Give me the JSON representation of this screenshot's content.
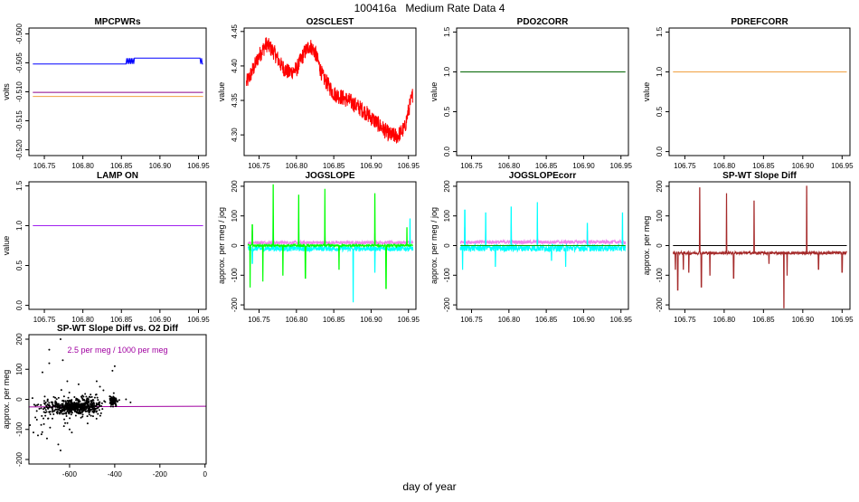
{
  "title": "100416a   Medium Rate Data 4",
  "footer_xlabel": "day of year",
  "chart_data": [
    {
      "id": "mpcpwrs",
      "type": "line",
      "title": "MPCPWRs",
      "ylabel": "volts",
      "xlim": [
        106.73,
        106.96
      ],
      "ylim": [
        -0.521,
        -0.499
      ],
      "xticks": [
        "106.75",
        "106.80",
        "106.85",
        "106.90",
        "106.95"
      ],
      "yticks": [
        "-0.500",
        "-0.505",
        "-0.510",
        "-0.515",
        "-0.520"
      ],
      "series": [
        {
          "color": "#0000ff",
          "x": [
            106.735,
            106.856,
            106.857,
            106.858,
            106.859,
            106.86,
            106.861,
            106.862,
            106.863,
            106.864,
            106.865,
            106.866,
            106.867,
            106.952,
            106.953,
            106.954,
            106.955,
            106.956
          ],
          "y": [
            -0.5052,
            -0.5052,
            -0.5042,
            -0.5052,
            -0.5042,
            -0.5052,
            -0.5042,
            -0.5052,
            -0.5042,
            -0.5052,
            -0.5042,
            -0.5052,
            -0.5042,
            -0.5042,
            -0.5052,
            -0.5042,
            -0.5052,
            -0.5052
          ]
        },
        {
          "color": "#8b008b",
          "x": [
            106.735,
            106.956
          ],
          "y": [
            -0.5101,
            -0.5101
          ]
        },
        {
          "color": "#f0a040",
          "x": [
            106.735,
            106.956
          ],
          "y": [
            -0.5108,
            -0.5108
          ]
        }
      ]
    },
    {
      "id": "o2sclest",
      "type": "line",
      "title": "O2SCLEST",
      "ylabel": "value",
      "xlim": [
        106.73,
        106.96
      ],
      "ylim": [
        4.27,
        4.455
      ],
      "xticks": [
        "106.75",
        "106.80",
        "106.85",
        "106.90",
        "106.95"
      ],
      "yticks": [
        "4.30",
        "4.35",
        "4.40",
        "4.45"
      ],
      "series": [
        {
          "color": "#ff0000",
          "noise": 0.012,
          "x": [
            106.733,
            106.74,
            106.75,
            106.76,
            106.77,
            106.78,
            106.79,
            106.8,
            106.81,
            106.818,
            106.825,
            106.835,
            106.85,
            106.87,
            106.89,
            106.91,
            106.925,
            106.935,
            106.945,
            106.95,
            106.956
          ],
          "y": [
            4.375,
            4.39,
            4.415,
            4.432,
            4.42,
            4.4,
            4.39,
            4.395,
            4.418,
            4.43,
            4.42,
            4.385,
            4.36,
            4.35,
            4.335,
            4.315,
            4.3,
            4.298,
            4.31,
            4.335,
            4.36
          ]
        }
      ]
    },
    {
      "id": "pdo2corr",
      "type": "line",
      "title": "PDO2CORR",
      "ylabel": "value",
      "xlim": [
        106.73,
        106.96
      ],
      "ylim": [
        -0.05,
        1.55
      ],
      "xticks": [
        "106.75",
        "106.80",
        "106.85",
        "106.90",
        "106.95"
      ],
      "yticks": [
        "0.0",
        "0.5",
        "1.0",
        "1.5"
      ],
      "series": [
        {
          "color": "#006400",
          "x": [
            106.735,
            106.956
          ],
          "y": [
            1.0,
            1.0
          ]
        }
      ]
    },
    {
      "id": "pdrefcorr",
      "type": "line",
      "title": "PDREFCORR",
      "ylabel": "value",
      "xlim": [
        106.73,
        106.96
      ],
      "ylim": [
        -0.05,
        1.55
      ],
      "xticks": [
        "106.75",
        "106.80",
        "106.85",
        "106.90",
        "106.95"
      ],
      "yticks": [
        "0.0",
        "0.5",
        "1.0",
        "1.5"
      ],
      "series": [
        {
          "color": "#f0a040",
          "x": [
            106.735,
            106.956
          ],
          "y": [
            1.0,
            1.0
          ]
        }
      ]
    },
    {
      "id": "lampon",
      "type": "line",
      "title": "LAMP ON",
      "ylabel": "value",
      "xlim": [
        106.73,
        106.96
      ],
      "ylim": [
        -0.05,
        1.55
      ],
      "xticks": [
        "106.75",
        "106.80",
        "106.85",
        "106.90",
        "106.95"
      ],
      "yticks": [
        "0.0",
        "0.5",
        "1.0",
        "1.5"
      ],
      "series": [
        {
          "color": "#a020f0",
          "x": [
            106.735,
            106.956
          ],
          "y": [
            1.0,
            1.0
          ]
        }
      ]
    },
    {
      "id": "jogslope",
      "type": "line",
      "title": "JOGSLOPE",
      "ylabel": "approx. per meg / jog",
      "xlim": [
        106.73,
        106.96
      ],
      "ylim": [
        -215,
        215
      ],
      "xticks": [
        "106.75",
        "106.80",
        "106.85",
        "106.90",
        "106.95"
      ],
      "yticks": [
        "-200",
        "-100",
        "0",
        "100",
        "200"
      ],
      "series": [
        {
          "color": "#ee82ee",
          "noise": 6,
          "x": [
            106.735,
            106.956
          ],
          "y": [
            10,
            10
          ],
          "spikes": [
            {
              "x": 106.741,
              "y": 50
            },
            {
              "x": 106.769,
              "y": 60
            },
            {
              "x": 106.803,
              "y": 60
            },
            {
              "x": 106.838,
              "y": 70
            },
            {
              "x": 106.905,
              "y": 40
            }
          ]
        },
        {
          "color": "#00ffff",
          "noise": 9,
          "x": [
            106.735,
            106.956
          ],
          "y": [
            -10,
            -10
          ],
          "spikes": [
            {
              "x": 106.741,
              "y": -60
            },
            {
              "x": 106.769,
              "y": 100
            },
            {
              "x": 106.803,
              "y": 90
            },
            {
              "x": 106.838,
              "y": 50
            },
            {
              "x": 106.876,
              "y": -190
            },
            {
              "x": 106.905,
              "y": -90
            },
            {
              "x": 106.952,
              "y": 90
            }
          ]
        },
        {
          "color": "#00ff00",
          "noise": 4,
          "x": [
            106.735,
            106.956
          ],
          "y": [
            0,
            0
          ],
          "spikes": [
            {
              "x": 106.738,
              "y": -140
            },
            {
              "x": 106.741,
              "y": 70
            },
            {
              "x": 106.755,
              "y": -120
            },
            {
              "x": 106.769,
              "y": 205
            },
            {
              "x": 106.782,
              "y": -100
            },
            {
              "x": 106.803,
              "y": 170
            },
            {
              "x": 106.812,
              "y": -110
            },
            {
              "x": 106.838,
              "y": 190
            },
            {
              "x": 106.857,
              "y": -80
            },
            {
              "x": 106.905,
              "y": 175
            },
            {
              "x": 106.92,
              "y": -145
            },
            {
              "x": 106.948,
              "y": 60
            }
          ]
        }
      ]
    },
    {
      "id": "jogslopecorr",
      "type": "line",
      "title": "JOGSLOPEcorr",
      "ylabel": "approx. per meg / jog",
      "xlim": [
        106.73,
        106.96
      ],
      "ylim": [
        -215,
        215
      ],
      "xticks": [
        "106.75",
        "106.80",
        "106.85",
        "106.90",
        "106.95"
      ],
      "yticks": [
        "-200",
        "-100",
        "0",
        "100",
        "200"
      ],
      "series": [
        {
          "color": "#ee82ee",
          "noise": 6,
          "x": [
            106.735,
            106.956
          ],
          "y": [
            12,
            12
          ],
          "spikes": [
            {
              "x": 106.741,
              "y": 60
            },
            {
              "x": 106.769,
              "y": 50
            },
            {
              "x": 106.803,
              "y": 70
            },
            {
              "x": 106.838,
              "y": 80
            },
            {
              "x": 106.905,
              "y": 50
            }
          ]
        },
        {
          "color": "#00ffff",
          "noise": 12,
          "x": [
            106.735,
            106.956
          ],
          "y": [
            -8,
            -8
          ],
          "spikes": [
            {
              "x": 106.738,
              "y": -80
            },
            {
              "x": 106.741,
              "y": 120
            },
            {
              "x": 106.769,
              "y": 110
            },
            {
              "x": 106.782,
              "y": -70
            },
            {
              "x": 106.803,
              "y": 130
            },
            {
              "x": 106.838,
              "y": 145
            },
            {
              "x": 106.857,
              "y": -50
            },
            {
              "x": 106.876,
              "y": -70
            },
            {
              "x": 106.905,
              "y": 75
            },
            {
              "x": 106.952,
              "y": 110
            }
          ]
        },
        {
          "color": "#00aa00",
          "x": [
            106.735,
            106.956
          ],
          "y": [
            0,
            0
          ]
        }
      ]
    },
    {
      "id": "spwt",
      "type": "line",
      "title": "SP-WT Slope Diff",
      "ylabel": "approx. per meg",
      "xlim": [
        106.73,
        106.96
      ],
      "ylim": [
        -215,
        215
      ],
      "xticks": [
        "106.75",
        "106.80",
        "106.85",
        "106.90",
        "106.95"
      ],
      "yticks": [
        "-200",
        "-100",
        "0",
        "100",
        "200"
      ],
      "series": [
        {
          "color": "#000000",
          "x": [
            106.735,
            106.956
          ],
          "y": [
            0,
            0
          ]
        },
        {
          "color": "#a52a2a",
          "noise": 5,
          "x": [
            106.735,
            106.956
          ],
          "y": [
            -25,
            -25
          ],
          "spikes": [
            {
              "x": 106.738,
              "y": -80
            },
            {
              "x": 106.741,
              "y": -150
            },
            {
              "x": 106.748,
              "y": -80
            },
            {
              "x": 106.755,
              "y": -90
            },
            {
              "x": 106.769,
              "y": 195
            },
            {
              "x": 106.771,
              "y": -140
            },
            {
              "x": 106.782,
              "y": -100
            },
            {
              "x": 106.803,
              "y": 175
            },
            {
              "x": 106.812,
              "y": -110
            },
            {
              "x": 106.838,
              "y": 150
            },
            {
              "x": 106.857,
              "y": -60
            },
            {
              "x": 106.876,
              "y": -210
            },
            {
              "x": 106.88,
              "y": -100
            },
            {
              "x": 106.905,
              "y": 200
            },
            {
              "x": 106.92,
              "y": -80
            },
            {
              "x": 106.95,
              "y": -90
            }
          ]
        }
      ]
    },
    {
      "id": "scatter",
      "type": "scatter",
      "title": "SP-WT Slope Diff vs. O2 Diff",
      "ylabel": "approx. per meg",
      "annotation": "2.5 per meg / 1000 per meg",
      "annotation_color": "#a000a0",
      "xlim": [
        -780,
        5
      ],
      "ylim": [
        -215,
        215
      ],
      "xticks": [
        "-600",
        "-400",
        "-200",
        "0"
      ],
      "yticks": [
        "-200",
        "-100",
        "0",
        "100",
        "200"
      ],
      "fit_line": {
        "color": "#a000a0",
        "x": [
          -780,
          5
        ],
        "y": [
          -25,
          -23
        ]
      },
      "clusters": [
        {
          "cx": -580,
          "cy": -25,
          "sx": 55,
          "sy": 12,
          "n": 520
        },
        {
          "cx": -680,
          "cy": -40,
          "sx": 50,
          "sy": 30,
          "n": 60
        },
        {
          "cx": -405,
          "cy": -5,
          "sx": 10,
          "sy": 10,
          "n": 80
        },
        {
          "cx": -500,
          "cy": -20,
          "sx": 25,
          "sy": 25,
          "n": 60
        }
      ],
      "extra_points": [
        [
          -640,
          200
        ],
        [
          -690,
          165
        ],
        [
          -720,
          90
        ],
        [
          -630,
          130
        ],
        [
          -690,
          120
        ],
        [
          -400,
          110
        ],
        [
          -410,
          95
        ],
        [
          -640,
          -170
        ],
        [
          -600,
          -100
        ],
        [
          -760,
          -110
        ],
        [
          -740,
          -120
        ],
        [
          -610,
          60
        ],
        [
          -560,
          50
        ],
        [
          -450,
          30
        ],
        [
          -330,
          -10
        ],
        [
          -350,
          0
        ],
        [
          -700,
          -130
        ],
        [
          -650,
          -150
        ],
        [
          -590,
          -110
        ],
        [
          -520,
          -80
        ],
        [
          -480,
          60
        ]
      ]
    }
  ]
}
